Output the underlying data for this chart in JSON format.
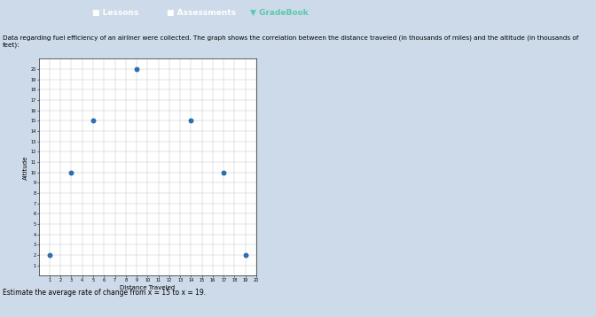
{
  "x_data": [
    1,
    3,
    5,
    9,
    14,
    17,
    19
  ],
  "y_data": [
    2,
    10,
    15,
    20,
    15,
    10,
    2
  ],
  "xlabel": "Distance Traveled",
  "ylabel": "Altitude",
  "xlim": [
    0,
    20
  ],
  "ylim": [
    0,
    21
  ],
  "x_ticks": [
    1,
    2,
    3,
    4,
    5,
    6,
    7,
    8,
    9,
    10,
    11,
    12,
    13,
    14,
    15,
    16,
    17,
    18,
    19,
    20
  ],
  "y_ticks": [
    1,
    2,
    3,
    4,
    5,
    6,
    7,
    8,
    9,
    10,
    11,
    12,
    13,
    14,
    15,
    16,
    17,
    18,
    19,
    20
  ],
  "marker_color": "#2d6fac",
  "marker_size": 18,
  "grid_color": "#bbbbbb",
  "plot_bg": "#ffffff",
  "page_bg": "#cddaea",
  "header_bg": "#1e3a5f",
  "header_text_lessons": "■ Lessons",
  "header_text_assessments": "■ Assessments",
  "header_text_gradebook": "▼ GradeBook",
  "description": "Data regarding fuel efficiency of an airliner were collected. The graph shows the correlation between the distance traveled (in thousands of miles) and the altitude (in thousands of feet):",
  "footer_text": "Estimate the average rate of change from x = 15 to x = 19."
}
